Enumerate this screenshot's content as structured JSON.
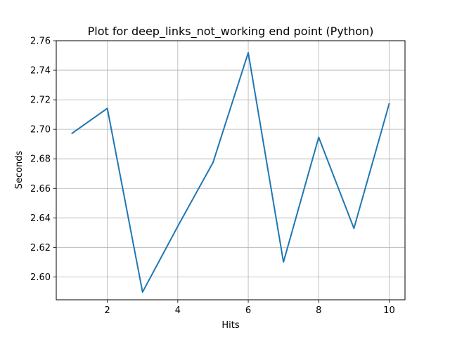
{
  "chart_data": {
    "type": "line",
    "title": "Plot for deep_links_not_working end point (Python)",
    "xlabel": "Hits",
    "ylabel": "Seconds",
    "xlim": [
      0.55,
      10.45
    ],
    "ylim": [
      2.5845,
      2.76
    ],
    "x_ticks": [
      2,
      4,
      6,
      8,
      10
    ],
    "x_tick_labels": [
      "2",
      "4",
      "6",
      "8",
      "10"
    ],
    "y_ticks": [
      2.6,
      2.62,
      2.64,
      2.66,
      2.68,
      2.7,
      2.72,
      2.74,
      2.76
    ],
    "y_tick_labels": [
      "2.60",
      "2.62",
      "2.64",
      "2.66",
      "2.68",
      "2.70",
      "2.72",
      "2.74",
      "2.76"
    ],
    "grid": true,
    "series": [
      {
        "color": "#1f77b4",
        "x": [
          1,
          2,
          3,
          4,
          5,
          6,
          7,
          8,
          9,
          10
        ],
        "y": [
          2.6973,
          2.7142,
          2.5897,
          2.6343,
          2.6775,
          2.7519,
          2.6101,
          2.6946,
          2.6329,
          2.7172
        ]
      }
    ]
  }
}
